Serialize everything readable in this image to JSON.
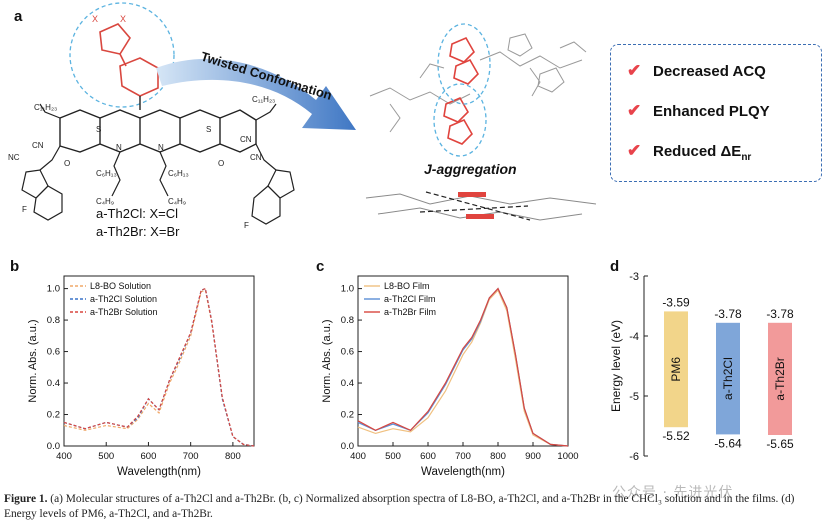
{
  "panels": {
    "a": "a",
    "b": "b",
    "c": "c",
    "d": "d"
  },
  "molecule": {
    "substituents": [
      "X",
      "X"
    ],
    "side_chains": {
      "c11_left": "C₁₁H₂₃",
      "c11_right": "C₁₁H₂₃",
      "c6_left": "C₆H₁₃",
      "c6_right": "C₆H₁₃",
      "c4_left": "C₄H₉",
      "c4_right": "C₄H₉"
    },
    "atoms": {
      "s": "S",
      "n": "N",
      "cn": "CN",
      "nc": "NC",
      "o": "O",
      "f": "F"
    },
    "legend": [
      "a-Th2Cl:  X=Cl",
      "a-Th2Br:  X=Br"
    ]
  },
  "arrow_label": "Twisted Conformation",
  "aggregation_label": "J-aggregation",
  "benefits": [
    "Decreased ACQ",
    "Enhanced PLQY",
    "Reduced ΔE"
  ],
  "benefit_subscript": "nr",
  "check_glyph": "✔",
  "chart_data": [
    {
      "type": "line",
      "panel": "b",
      "xlabel": "Wavelength(nm)",
      "ylabel": "Norm. Abs. (a.u.)",
      "xlim": [
        400,
        850
      ],
      "ylim": [
        0,
        1.08
      ],
      "xticks": [
        400,
        500,
        600,
        700,
        800
      ],
      "yticks": [
        0.0,
        0.2,
        0.4,
        0.6,
        0.8,
        1.0
      ],
      "x": [
        400,
        450,
        500,
        550,
        575,
        600,
        625,
        650,
        675,
        700,
        725,
        735,
        750,
        775,
        800,
        825,
        850
      ],
      "series": [
        {
          "name": "L8-BO Solution",
          "color": "#f0a868",
          "values": [
            0.13,
            0.1,
            0.13,
            0.11,
            0.17,
            0.27,
            0.21,
            0.4,
            0.54,
            0.7,
            0.98,
            0.99,
            0.78,
            0.3,
            0.06,
            0.01,
            0.0
          ]
        },
        {
          "name": "a-Th2Cl Solution",
          "color": "#3a73c9",
          "values": [
            0.15,
            0.11,
            0.15,
            0.12,
            0.18,
            0.3,
            0.23,
            0.42,
            0.56,
            0.72,
            0.99,
            1.0,
            0.79,
            0.3,
            0.06,
            0.01,
            0.0
          ]
        },
        {
          "name": "a-Th2Br Solution",
          "color": "#d9473f",
          "values": [
            0.15,
            0.11,
            0.15,
            0.12,
            0.19,
            0.3,
            0.23,
            0.42,
            0.57,
            0.72,
            0.99,
            1.0,
            0.79,
            0.31,
            0.06,
            0.01,
            0.0
          ]
        }
      ],
      "legend": "top-left"
    },
    {
      "type": "line",
      "panel": "c",
      "xlabel": "Wavelength(nm)",
      "ylabel": "Norm. Abs. (a.u.)",
      "xlim": [
        400,
        1000
      ],
      "ylim": [
        0,
        1.08
      ],
      "xticks": [
        400,
        500,
        600,
        700,
        800,
        900,
        1000
      ],
      "yticks": [
        0.0,
        0.2,
        0.4,
        0.6,
        0.8,
        1.0
      ],
      "x": [
        400,
        450,
        500,
        550,
        600,
        650,
        700,
        725,
        750,
        775,
        800,
        825,
        850,
        875,
        900,
        950,
        1000
      ],
      "series": [
        {
          "name": "L8-BO Film",
          "color": "#f0c080",
          "values": [
            0.12,
            0.08,
            0.11,
            0.09,
            0.18,
            0.35,
            0.58,
            0.66,
            0.78,
            0.93,
            0.99,
            0.86,
            0.55,
            0.22,
            0.07,
            0.01,
            0.0
          ]
        },
        {
          "name": "a-Th2Cl Film",
          "color": "#5b8fd6",
          "values": [
            0.15,
            0.1,
            0.14,
            0.1,
            0.21,
            0.39,
            0.61,
            0.68,
            0.79,
            0.94,
            1.0,
            0.88,
            0.58,
            0.24,
            0.08,
            0.01,
            0.0
          ]
        },
        {
          "name": "a-Th2Br Film",
          "color": "#d9473f",
          "values": [
            0.16,
            0.1,
            0.15,
            0.1,
            0.22,
            0.4,
            0.62,
            0.69,
            0.8,
            0.94,
            1.0,
            0.88,
            0.58,
            0.24,
            0.08,
            0.01,
            0.0
          ]
        }
      ],
      "legend": "top-left"
    },
    {
      "type": "bar",
      "panel": "d",
      "ylabel": "Energy level (eV)",
      "ylim": [
        -6,
        -3
      ],
      "yticks": [
        -6,
        -5,
        -4,
        -3
      ],
      "bars": [
        {
          "name": "PM6",
          "lumo": -3.59,
          "homo": -5.52,
          "lumo_label": "-3.59",
          "homo_label": "-5.52",
          "color": "#f2d58a"
        },
        {
          "name": "a-Th2Cl",
          "lumo": -3.78,
          "homo": -5.64,
          "lumo_label": "-3.78",
          "homo_label": "-5.64",
          "color": "#7fa6d9"
        },
        {
          "name": "a-Th2Br",
          "lumo": -3.78,
          "homo": -5.65,
          "lumo_label": "-3.78",
          "homo_label": "-5.65",
          "color": "#f29a9a"
        }
      ]
    }
  ],
  "caption": {
    "label": "Figure 1.",
    "text": " (a) Molecular structures of a-Th2Cl and a-Th2Br. (b, c) Normalized absorption spectra of L8-BO, a-Th2Cl, and a-Th2Br in the CHCl₃ solution and in the films. (d) Energy levels of PM6, a-Th2Cl, and a-Th2Br."
  },
  "watermark": "公众号 · 先进光伏"
}
